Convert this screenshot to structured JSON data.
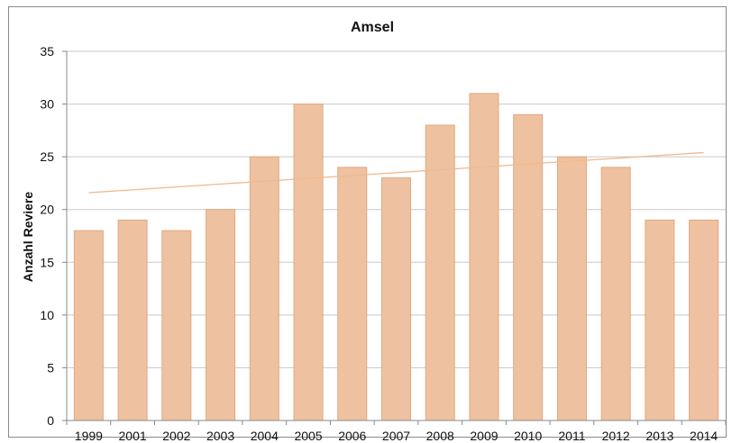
{
  "chart_data": {
    "type": "bar",
    "title": "Amsel",
    "xlabel": "",
    "ylabel": "Anzahl Reviere",
    "categories": [
      "1999",
      "2001",
      "2002",
      "2003",
      "2004",
      "2005",
      "2006",
      "2007",
      "2008",
      "2009",
      "2010",
      "2011",
      "2012",
      "2013",
      "2014"
    ],
    "series": [
      {
        "values": [
          18,
          19,
          18,
          20,
          25,
          30,
          24,
          23,
          28,
          31,
          29,
          25,
          24,
          19,
          19
        ]
      }
    ],
    "trendline": {
      "start": 21.6,
      "end": 25.4
    },
    "ylim": [
      0,
      35
    ],
    "yticks": [
      0,
      5,
      10,
      15,
      20,
      25,
      30,
      35
    ],
    "grid": true,
    "legend": "none",
    "colors": {
      "bar_fill": "#EEC2A0",
      "bar_stroke": "#E3A77F",
      "trend_line": "#F0B98E",
      "gridline": "#C8C8C8",
      "axis": "#888888"
    }
  }
}
